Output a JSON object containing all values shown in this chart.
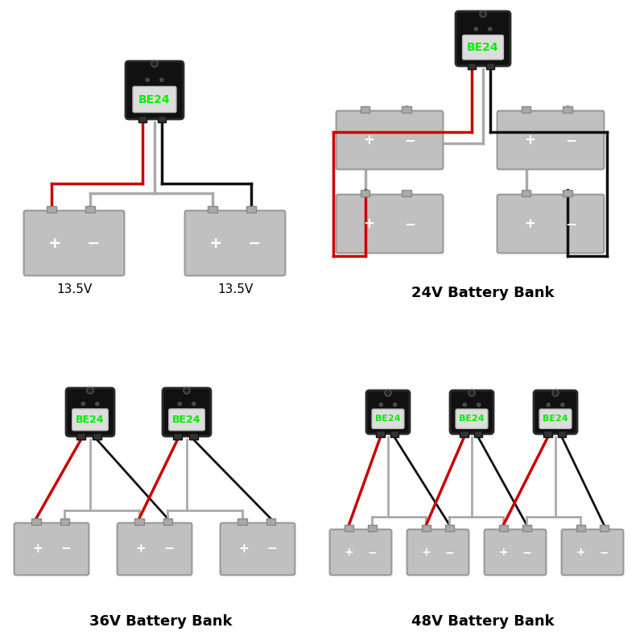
{
  "bg_color": "#ffffff",
  "battery_color": "#c0c0c0",
  "battery_border": "#999999",
  "device_color": "#111111",
  "label_bg": "#e0e0e0",
  "label_text": "#00ee00",
  "label_text_str": "BE24",
  "wire_red": "#cc0000",
  "wire_black": "#111111",
  "wire_gray": "#aaaaaa",
  "plus_minus_color": "#ffffff",
  "section_labels": [
    "24V Battery Bank",
    "36V Battery Bank",
    "48V Battery Bank"
  ],
  "volt_labels": [
    "13.5V",
    "13.5V"
  ],
  "title_fontsize": 13,
  "volt_fontsize": 11
}
